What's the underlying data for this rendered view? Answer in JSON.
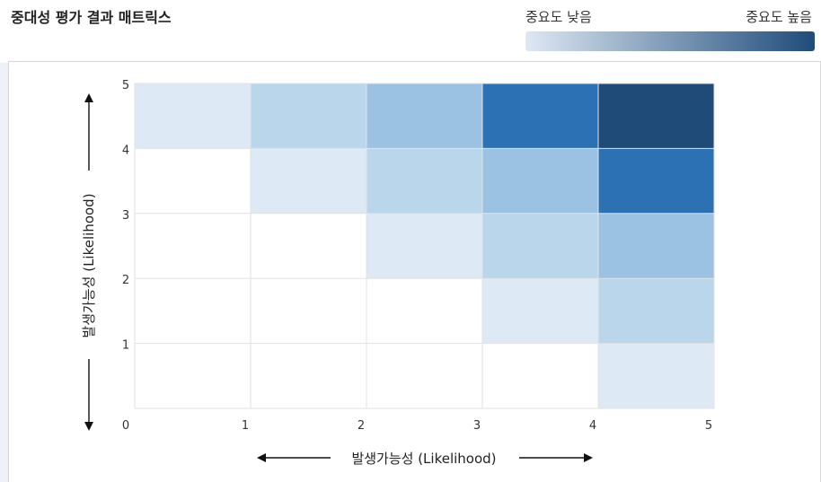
{
  "header": {
    "title": "중대성 평가 결과 매트릭스",
    "legend_low": "중요도 낮음",
    "legend_high": "중요도 높음"
  },
  "colors": {
    "legend_start": "#dde8f3",
    "legend_end": "#1f4c7b",
    "levels": [
      "#ffffff",
      "#dde9f4",
      "#b9d6ea",
      "#9bc1e3",
      "#2b71b4",
      "#1f4b78"
    ]
  },
  "chart_data": {
    "type": "heatmap",
    "title": "",
    "xlabel": "발생가능성 (Likelihood)",
    "ylabel": "발생가능성 (Likelihood)",
    "xlim": [
      0,
      5
    ],
    "ylim": [
      0,
      5
    ],
    "x_ticks": [
      "0",
      "1",
      "2",
      "3",
      "4",
      "5"
    ],
    "y_ticks": [
      "1",
      "2",
      "3",
      "4",
      "5"
    ],
    "grid": true,
    "rows_top_to_bottom": [
      [
        1,
        2,
        3,
        4,
        5
      ],
      [
        0,
        1,
        2,
        3,
        4
      ],
      [
        0,
        0,
        1,
        2,
        3
      ],
      [
        0,
        0,
        0,
        1,
        2
      ],
      [
        0,
        0,
        0,
        0,
        1
      ]
    ]
  }
}
